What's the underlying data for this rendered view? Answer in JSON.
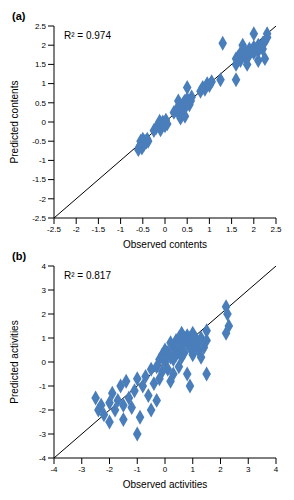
{
  "chart_data": [
    {
      "type": "scatter",
      "title": "(a)",
      "x_label": "Observed contents",
      "y_label": "Predicted contents",
      "annotation": "R² = 0.974",
      "color": "#4a7ebb",
      "marker": "diamond",
      "grid": false,
      "xlim": [
        -2.5,
        2.5
      ],
      "ylim": [
        -2.5,
        2.5
      ],
      "xticks": [
        -2.5,
        -2,
        -1.5,
        -1,
        -0.5,
        0,
        0.5,
        1,
        1.5,
        2,
        2.5
      ],
      "yticks": [
        -2.5,
        -2,
        -1.5,
        -1,
        -0.5,
        0,
        0.5,
        1,
        1.5,
        2,
        2.5
      ],
      "x": [
        -0.6,
        -0.58,
        -0.55,
        -0.52,
        -0.5,
        -0.48,
        -0.45,
        -0.42,
        -0.4,
        -0.38,
        -0.5,
        -0.55,
        -0.2,
        -0.15,
        -0.1,
        -0.08,
        -0.05,
        0.0,
        0.02,
        -0.12,
        0.05,
        -0.25,
        0.2,
        0.25,
        0.3,
        0.32,
        0.35,
        0.38,
        0.4,
        0.42,
        0.45,
        0.48,
        0.5,
        0.52,
        0.55,
        0.58,
        0.6,
        0.3,
        0.5,
        0.45,
        0.35,
        0.8,
        0.85,
        0.9,
        0.95,
        1.0,
        1.05,
        1.25,
        1.6,
        1.6,
        1.6,
        1.65,
        1.7,
        1.7,
        1.75,
        1.8,
        1.8,
        1.85,
        1.9,
        1.9,
        1.95,
        2.0,
        2.0,
        2.05,
        2.1,
        2.1,
        2.15,
        2.2,
        2.2,
        2.25,
        2.3,
        2.3,
        2.0,
        1.75,
        1.3,
        2.25,
        2.1,
        1.85
      ],
      "values": [
        -0.72,
        -0.65,
        -0.6,
        -0.68,
        -0.55,
        -0.6,
        -0.5,
        -0.52,
        -0.45,
        -0.5,
        -0.45,
        -0.5,
        -0.15,
        -0.1,
        -0.2,
        -0.05,
        0.0,
        -0.1,
        0.05,
        0.02,
        -0.05,
        -0.22,
        0.25,
        0.3,
        0.35,
        0.2,
        0.45,
        0.4,
        0.3,
        0.5,
        0.55,
        0.42,
        0.6,
        0.5,
        0.45,
        0.55,
        0.65,
        0.55,
        0.9,
        0.15,
        0.1,
        0.8,
        0.9,
        0.85,
        1.0,
        0.95,
        1.05,
        1.1,
        1.1,
        1.5,
        1.65,
        1.7,
        1.6,
        1.8,
        1.75,
        1.7,
        1.85,
        1.8,
        1.75,
        1.9,
        1.85,
        1.8,
        1.95,
        1.9,
        1.85,
        2.0,
        1.95,
        1.9,
        2.05,
        2.1,
        2.2,
        2.3,
        2.3,
        2.0,
        2.05,
        1.65,
        1.6,
        1.5
      ]
    },
    {
      "type": "scatter",
      "title": "(b)",
      "x_label": "Observed activities",
      "y_label": "Predicted activities",
      "annotation": "R² = 0.817",
      "color": "#4a7ebb",
      "marker": "diamond",
      "grid": false,
      "xlim": [
        -4,
        4
      ],
      "ylim": [
        -4,
        4
      ],
      "xticks": [
        -4,
        -3,
        -2,
        -1,
        0,
        1,
        2,
        3,
        4
      ],
      "yticks": [
        -4,
        -3,
        -2,
        -1,
        0,
        1,
        2,
        3,
        4
      ],
      "x": [
        -2.5,
        -2.4,
        -2.3,
        -2.2,
        -2.0,
        -2.0,
        -1.9,
        -1.8,
        -1.7,
        -1.6,
        -1.5,
        -1.5,
        -1.4,
        -1.3,
        -1.2,
        -1.1,
        -1.0,
        -1.0,
        -0.9,
        -0.8,
        -0.7,
        -0.6,
        -0.5,
        -0.5,
        -0.4,
        -0.3,
        -0.3,
        -0.2,
        -0.2,
        -0.1,
        -0.1,
        0.0,
        0.0,
        0.1,
        0.1,
        0.2,
        0.2,
        0.2,
        0.3,
        0.3,
        0.4,
        0.4,
        0.5,
        0.5,
        0.5,
        0.6,
        0.6,
        0.7,
        0.7,
        0.8,
        0.8,
        0.8,
        0.9,
        0.9,
        1.0,
        1.0,
        1.0,
        1.1,
        1.1,
        1.2,
        1.2,
        1.3,
        1.3,
        1.4,
        1.5,
        1.5,
        0.6,
        0.3,
        0.9,
        1.5,
        2.2,
        2.25,
        2.3,
        2.2
      ],
      "values": [
        -1.5,
        -2.0,
        -1.8,
        -2.2,
        -1.7,
        -2.5,
        -1.3,
        -2.0,
        -1.6,
        -1.0,
        -1.8,
        -2.4,
        -0.8,
        -1.5,
        -1.9,
        -1.2,
        -3.0,
        -0.7,
        -2.3,
        -1.0,
        -0.6,
        -1.4,
        -0.3,
        -2.0,
        -0.9,
        -0.2,
        -1.6,
        0.1,
        -0.7,
        -0.4,
        0.3,
        0.0,
        0.5,
        -0.3,
        0.4,
        0.2,
        0.8,
        -0.8,
        0.6,
        0.1,
        0.9,
        0.3,
        0.5,
        1.0,
        -0.2,
        0.7,
        0.2,
        1.0,
        0.4,
        0.8,
        1.1,
        -0.5,
        0.6,
        1.0,
        0.9,
        0.3,
        1.2,
        0.7,
        1.0,
        0.8,
        0.5,
        1.0,
        0.2,
        0.6,
        0.9,
        1.3,
        1.2,
        -0.5,
        -1.0,
        -0.5,
        2.3,
        2.0,
        1.5,
        1.2
      ]
    }
  ]
}
